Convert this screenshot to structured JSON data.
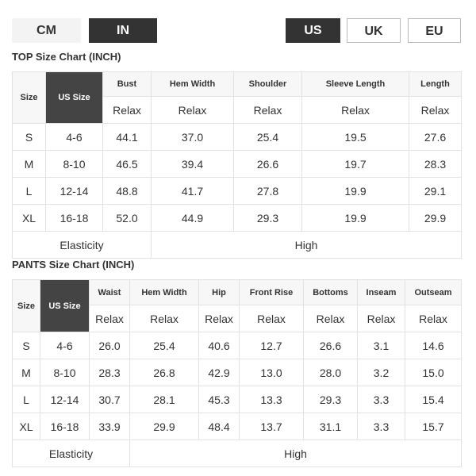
{
  "units": {
    "cm": "CM",
    "in": "IN"
  },
  "regions": {
    "us": "US",
    "uk": "UK",
    "eu": "EU"
  },
  "top": {
    "title": "TOP Size Chart (INCH)",
    "size_label": "Size",
    "us_size_label": "US Size",
    "columns": [
      "Bust",
      "Hem Width",
      "Shoulder",
      "Sleeve Length",
      "Length"
    ],
    "fit": "Relax",
    "rows": [
      [
        "S",
        "4-6",
        "44.1",
        "37.0",
        "25.4",
        "19.5",
        "27.6"
      ],
      [
        "M",
        "8-10",
        "46.5",
        "39.4",
        "26.6",
        "19.7",
        "28.3"
      ],
      [
        "L",
        "12-14",
        "48.8",
        "41.7",
        "27.8",
        "19.9",
        "29.1"
      ],
      [
        "XL",
        "16-18",
        "52.0",
        "44.9",
        "29.3",
        "19.9",
        "29.9"
      ]
    ],
    "elasticity_label": "Elasticity",
    "elasticity": "High"
  },
  "pants": {
    "title": "PANTS Size Chart (INCH)",
    "size_label": "Size",
    "us_size_label": "US Size",
    "columns": [
      "Waist",
      "Hem Width",
      "Hip",
      "Front Rise",
      "Bottoms",
      "Inseam",
      "Outseam"
    ],
    "fit": "Relax",
    "rows": [
      [
        "S",
        "4-6",
        "26.0",
        "25.4",
        "40.6",
        "12.7",
        "26.6",
        "3.1",
        "14.6"
      ],
      [
        "M",
        "8-10",
        "28.3",
        "26.8",
        "42.9",
        "13.0",
        "28.0",
        "3.2",
        "15.0"
      ],
      [
        "L",
        "12-14",
        "30.7",
        "28.1",
        "45.3",
        "13.3",
        "29.3",
        "3.3",
        "15.4"
      ],
      [
        "XL",
        "16-18",
        "33.9",
        "29.9",
        "48.4",
        "13.7",
        "31.1",
        "3.3",
        "15.7"
      ]
    ],
    "elasticity_label": "Elasticity",
    "elasticity": "High"
  }
}
